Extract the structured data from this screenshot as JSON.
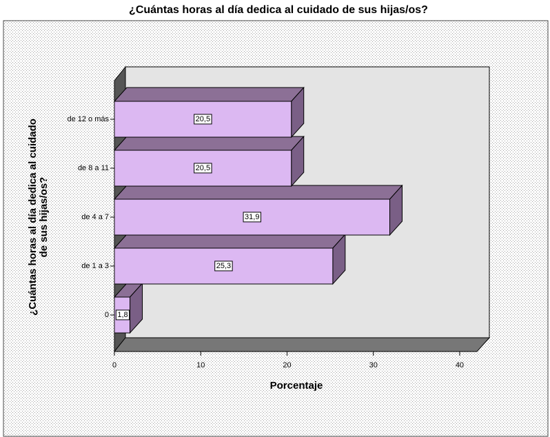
{
  "chart_data": {
    "type": "bar3d_horizontal",
    "title": "¿Cuántas horas al día dedica al cuidado de sus hijas/os?",
    "x_label": "Porcentaje",
    "y_label_lines": [
      "¿Cuántas horas al día dedica al cuidado",
      "de sus hijas/os?"
    ],
    "categories": [
      "0",
      "de 1 a 3",
      "de 4 a 7",
      "de 8 a 11",
      "de 12 o más"
    ],
    "values": [
      1.8,
      25.3,
      31.9,
      20.5,
      20.5
    ],
    "value_labels": [
      "1,8",
      "25,3",
      "31,9",
      "20,5",
      "20,5"
    ],
    "color": "#dcb8f2",
    "xlim": [
      0,
      42
    ],
    "xticks": [
      0,
      10,
      20,
      30,
      40
    ]
  }
}
